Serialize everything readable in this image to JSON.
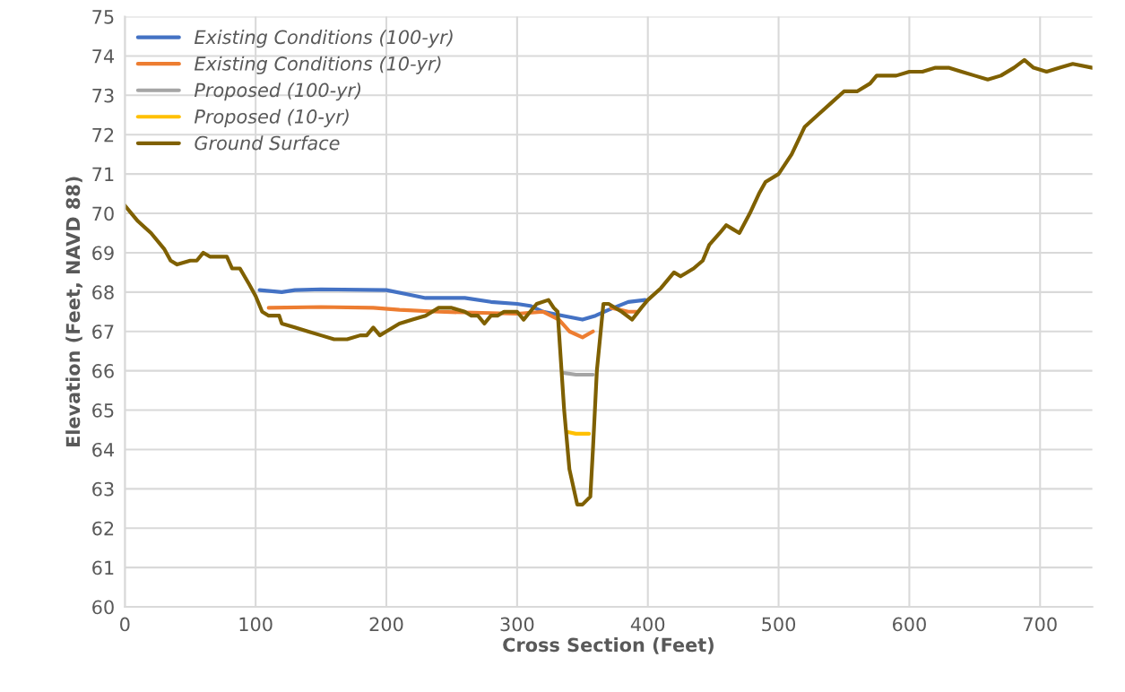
{
  "chart_data": {
    "type": "line",
    "xlabel": "Cross Section (Feet)",
    "ylabel": "Elevation (Feet, NAVD 88)",
    "xlim": [
      0,
      740
    ],
    "xticks": [
      0,
      100,
      200,
      300,
      400,
      500,
      600,
      700
    ],
    "ylim": [
      60,
      75
    ],
    "yticks": [
      60,
      61,
      62,
      63,
      64,
      65,
      66,
      67,
      68,
      69,
      70,
      71,
      72,
      73,
      74,
      75
    ],
    "grid": true,
    "legend": "top left",
    "marker": "none",
    "line_style": "solid",
    "series": [
      {
        "name": "Existing Conditions (100-yr)",
        "color": "#4472c4",
        "x": [
          103,
          120,
          130,
          150,
          200,
          215,
          230,
          260,
          280,
          300,
          310,
          320,
          335,
          350,
          360,
          370,
          385,
          398
        ],
        "values": [
          68.05,
          68.0,
          68.05,
          68.07,
          68.05,
          67.95,
          67.85,
          67.85,
          67.75,
          67.7,
          67.65,
          67.5,
          67.4,
          67.3,
          67.4,
          67.55,
          67.75,
          67.8
        ]
      },
      {
        "name": "Existing Conditions (10-yr)",
        "color": "#ed7d31",
        "x": [
          110,
          150,
          190,
          210,
          240,
          300,
          320,
          332,
          340,
          350,
          358,
          364,
          372,
          385,
          392
        ],
        "values": [
          67.6,
          67.62,
          67.6,
          67.55,
          67.5,
          67.45,
          67.5,
          67.3,
          67.0,
          66.85,
          67.0,
          null,
          67.6,
          67.5,
          67.5
        ]
      },
      {
        "name": "Proposed (100-yr)",
        "color": "#a5a5a5",
        "x": [
          335,
          345,
          358
        ],
        "values": [
          65.95,
          65.9,
          65.9
        ]
      },
      {
        "name": "Proposed (10-yr)",
        "color": "#ffc000",
        "x": [
          338,
          345,
          355
        ],
        "values": [
          64.45,
          64.4,
          64.4
        ]
      },
      {
        "name": "Ground Surface",
        "color": "#7f6000",
        "x": [
          0,
          10,
          20,
          30,
          35,
          40,
          50,
          55,
          60,
          65,
          70,
          78,
          82,
          88,
          95,
          100,
          105,
          110,
          118,
          120,
          130,
          140,
          150,
          160,
          170,
          180,
          185,
          190,
          195,
          200,
          210,
          220,
          230,
          240,
          250,
          260,
          265,
          270,
          275,
          280,
          285,
          290,
          300,
          305,
          310,
          315,
          324,
          328,
          331,
          336,
          340,
          346,
          350,
          356,
          358,
          361,
          366,
          370,
          380,
          388,
          395,
          400,
          410,
          415,
          420,
          425,
          435,
          442,
          447,
          455,
          460,
          465,
          470,
          478,
          485,
          490,
          500,
          510,
          520,
          530,
          540,
          550,
          560,
          570,
          575,
          590,
          600,
          610,
          620,
          630,
          640,
          650,
          660,
          670,
          680,
          688,
          695,
          705,
          715,
          725,
          740
        ],
        "values": [
          70.2,
          69.8,
          69.5,
          69.1,
          68.8,
          68.7,
          68.8,
          68.8,
          69.0,
          68.9,
          68.9,
          68.9,
          68.6,
          68.6,
          68.2,
          67.9,
          67.5,
          67.4,
          67.4,
          67.2,
          67.1,
          67.0,
          66.9,
          66.8,
          66.8,
          66.9,
          66.9,
          67.1,
          66.9,
          67.0,
          67.2,
          67.3,
          67.4,
          67.6,
          67.6,
          67.5,
          67.4,
          67.4,
          67.2,
          67.4,
          67.4,
          67.5,
          67.5,
          67.3,
          67.5,
          67.7,
          67.8,
          67.6,
          67.5,
          65.0,
          63.5,
          62.6,
          62.6,
          62.8,
          64.0,
          66.0,
          67.7,
          67.7,
          67.5,
          67.3,
          67.6,
          67.8,
          68.1,
          68.3,
          68.5,
          68.4,
          68.6,
          68.8,
          69.2,
          69.5,
          69.7,
          69.6,
          69.5,
          70.0,
          70.5,
          70.8,
          71.0,
          71.5,
          72.2,
          72.5,
          72.8,
          73.1,
          73.1,
          73.3,
          73.5,
          73.5,
          73.6,
          73.6,
          73.7,
          73.7,
          73.6,
          73.5,
          73.4,
          73.5,
          73.7,
          73.9,
          73.7,
          73.6,
          73.7,
          73.8,
          73.7
        ]
      }
    ]
  }
}
